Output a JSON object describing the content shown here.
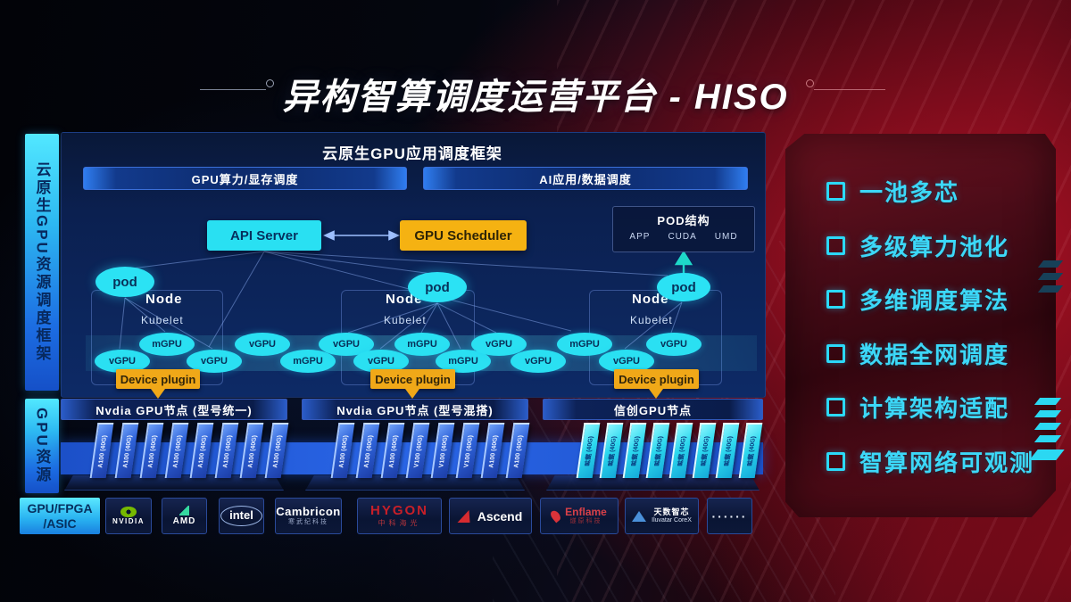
{
  "page": {
    "title": "异构智算调度运营平台 - HISO"
  },
  "sidebar": {
    "framework_label": "云原生GPU资源调度框架",
    "resources_label": "GPU资源"
  },
  "scheduler_panel": {
    "header": "云原生GPU应用调度框架",
    "pill_left": "GPU算力/显存调度",
    "pill_right": "AI应用/数据调度",
    "api_server": "API Server",
    "gpu_scheduler": "GPU Scheduler",
    "pod_structure": {
      "title": "POD结构",
      "items": [
        "APP",
        "CUDA",
        "UMD"
      ]
    },
    "pod_label": "pod",
    "node_label": "Node",
    "kubelet_label": "Kubelet",
    "device_plugin_label": "Device plugin",
    "gpu_units": [
      "vGPU",
      "mGPU",
      "vGPU",
      "vGPU",
      "mGPU",
      "vGPU",
      "vGPU",
      "mGPU",
      "mGPU",
      "vGPU",
      "vGPU",
      "mGPU",
      "vGPU",
      "vGPU"
    ]
  },
  "gpu_groups": [
    {
      "header": "Nvdia GPU节点 (型号统一)",
      "cards": [
        "A100 (40G)",
        "A100 (40G)",
        "A100 (40G)",
        "A100 (40G)",
        "A100 (40G)",
        "A100 (40G)",
        "A100 (40G)",
        "A100 (40G)"
      ]
    },
    {
      "header": "Nvdia GPU节点 (型号混搭)",
      "cards": [
        "A100 (40G)",
        "A100 (40G)",
        "A100 (40G)",
        "V100 (40G)",
        "V100 (40G)",
        "V100 (40G)",
        "A100 (40G)",
        "A100 (40G)"
      ]
    },
    {
      "header": "信创GPU节点",
      "cards": [
        "昇腾 (40G)",
        "昇腾 (40G)",
        "昇腾 (40G)",
        "昇腾 (40G)",
        "昇腾 (40G)",
        "昇腾 (40G)",
        "昇腾 (40G)",
        "昇腾 (40G)"
      ]
    }
  ],
  "vendors": {
    "panel_label_line1": "GPU/FPGA",
    "panel_label_line2": "/ASIC",
    "nvidia": {
      "name": "NVIDIA"
    },
    "amd": {
      "name": "AMD"
    },
    "intel": {
      "name": "intel"
    },
    "cambricon": {
      "name": "Cambricon",
      "sub": "寒武纪科技"
    },
    "hygon": {
      "name": "HYGON",
      "sub": "中科海光"
    },
    "ascend": {
      "name": "Ascend"
    },
    "enflame": {
      "name": "Enflame",
      "sub": "燧原科技"
    },
    "iluvatar": {
      "name": "天数智芯",
      "sub": "Iluvatar CoreX"
    },
    "more": {
      "name": "······"
    }
  },
  "features": {
    "items": [
      "一池多芯",
      "多级算力池化",
      "多维调度算法",
      "数据全网调度",
      "计算架构适配",
      "智算网络可观测"
    ]
  },
  "colors": {
    "accent_cyan": "#2BE0F2",
    "accent_yellow": "#F5B212",
    "accent_blue": "#2E6FE8",
    "accent_red": "#A01020"
  }
}
